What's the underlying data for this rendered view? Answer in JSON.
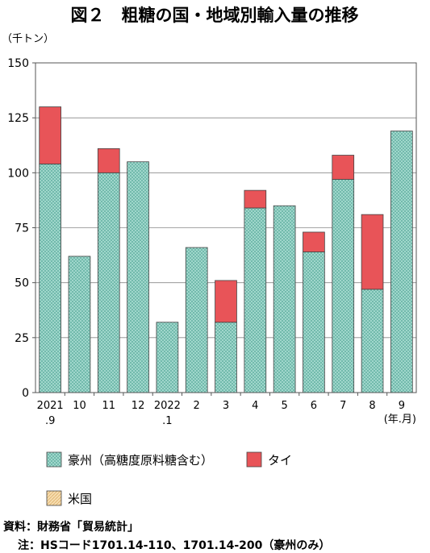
{
  "title": "図２　粗糖の国・地域別輸入量の推移",
  "unit_label": "（千トン）",
  "x_unit_label": "(年.月)",
  "source_note": "資料：財務省「貿易統計」",
  "hs_note": "注：HSコード1701.14-110、1701.14-200（豪州のみ）",
  "colors": {
    "australia": "#a9dcd2",
    "thailand": "#e85458",
    "usa": "#f6dcae",
    "grid": "#888888",
    "axis": "#555555"
  },
  "chart_data": {
    "type": "bar",
    "stacked": true,
    "categories": [
      [
        "2021",
        ".9"
      ],
      [
        "10",
        ""
      ],
      [
        "11",
        ""
      ],
      [
        "12",
        ""
      ],
      [
        "2022",
        ".1"
      ],
      [
        "2",
        ""
      ],
      [
        "3",
        ""
      ],
      [
        "4",
        ""
      ],
      [
        "5",
        ""
      ],
      [
        "6",
        ""
      ],
      [
        "7",
        ""
      ],
      [
        "8",
        ""
      ],
      [
        "9",
        ""
      ]
    ],
    "series": [
      {
        "name": "豪州（高糖度原料糖含む）",
        "color_key": "australia",
        "pattern": "crosshatch",
        "values": [
          104,
          62,
          100,
          105,
          32,
          66,
          32,
          84,
          85,
          64,
          97,
          47,
          119
        ]
      },
      {
        "name": "タイ",
        "color_key": "thailand",
        "pattern": "solid",
        "values": [
          26,
          0,
          11,
          0,
          0,
          0,
          19,
          8,
          0,
          9,
          11,
          34,
          0
        ]
      },
      {
        "name": "米国",
        "color_key": "usa",
        "pattern": "diagonal",
        "values": [
          0,
          0,
          0,
          0,
          0,
          0,
          0,
          0,
          0,
          0,
          0,
          0,
          0
        ]
      }
    ],
    "ylim": [
      0,
      150
    ],
    "yticks": [
      0,
      25,
      50,
      75,
      100,
      125,
      150
    ],
    "grid": true,
    "legend_placement": "bottom"
  }
}
